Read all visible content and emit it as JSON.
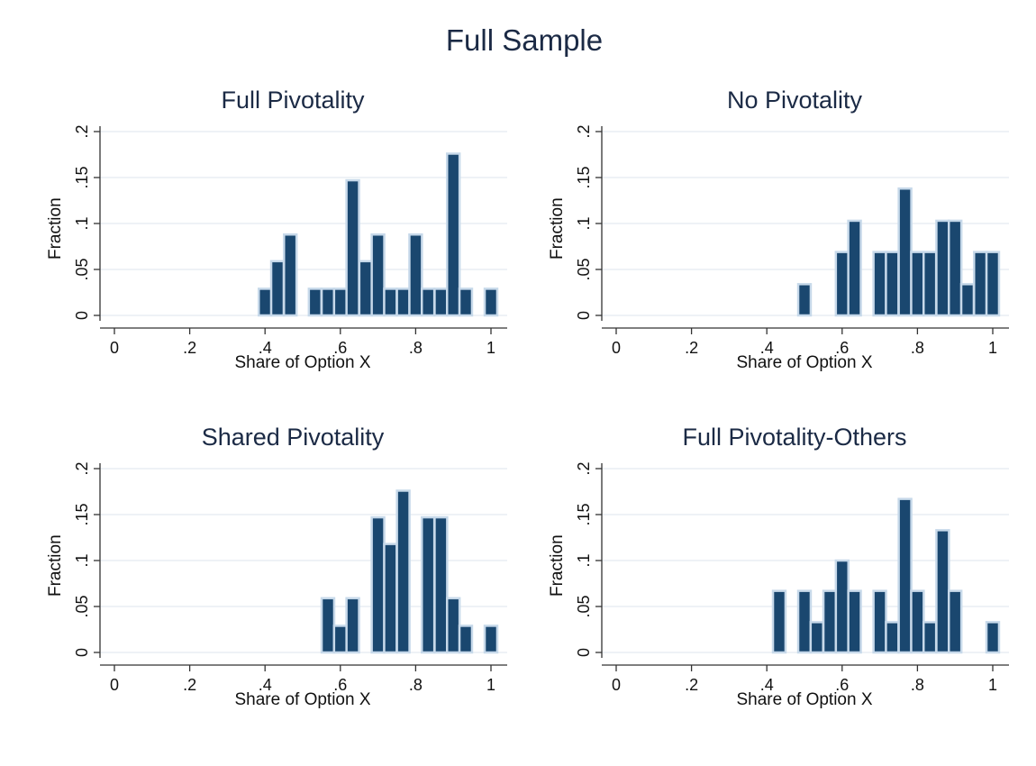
{
  "page": {
    "title": "Full Sample"
  },
  "chart_data": [
    {
      "type": "bar",
      "title": "Full Pivotality",
      "xlabel": "Share of Option X",
      "ylabel": "Fraction",
      "xlim": [
        0,
        1
      ],
      "ylim": [
        0,
        0.2
      ],
      "xticks": [
        "0",
        ".2",
        ".4",
        ".6",
        ".8",
        "1"
      ],
      "yticks": [
        "0",
        ".05",
        ".1",
        ".15",
        ".2"
      ],
      "bin_width": 0.0333,
      "x": [
        0.4,
        0.433,
        0.467,
        0.533,
        0.567,
        0.6,
        0.633,
        0.667,
        0.7,
        0.733,
        0.767,
        0.8,
        0.833,
        0.867,
        0.9,
        0.933,
        1.0
      ],
      "values": [
        0.029,
        0.059,
        0.088,
        0.029,
        0.029,
        0.029,
        0.147,
        0.059,
        0.088,
        0.029,
        0.029,
        0.088,
        0.029,
        0.029,
        0.176,
        0.029,
        0.029
      ]
    },
    {
      "type": "bar",
      "title": "No Pivotality",
      "xlabel": "Share of Option X",
      "ylabel": "Fraction",
      "xlim": [
        0,
        1
      ],
      "ylim": [
        0,
        0.2
      ],
      "xticks": [
        "0",
        ".2",
        ".4",
        ".6",
        ".8",
        "1"
      ],
      "yticks": [
        "0",
        ".05",
        ".1",
        ".15",
        ".2"
      ],
      "bin_width": 0.0333,
      "x": [
        0.5,
        0.6,
        0.633,
        0.7,
        0.733,
        0.767,
        0.8,
        0.833,
        0.867,
        0.9,
        0.933,
        0.967,
        1.0
      ],
      "values": [
        0.034,
        0.069,
        0.103,
        0.069,
        0.069,
        0.138,
        0.069,
        0.069,
        0.103,
        0.103,
        0.034,
        0.069,
        0.069
      ]
    },
    {
      "type": "bar",
      "title": "Shared Pivotality",
      "xlabel": "Share of Option X",
      "ylabel": "Fraction",
      "xlim": [
        0,
        1
      ],
      "ylim": [
        0,
        0.2
      ],
      "xticks": [
        "0",
        ".2",
        ".4",
        ".6",
        ".8",
        "1"
      ],
      "yticks": [
        "0",
        ".05",
        ".1",
        ".15",
        ".2"
      ],
      "bin_width": 0.0333,
      "x": [
        0.567,
        0.6,
        0.633,
        0.7,
        0.733,
        0.767,
        0.833,
        0.867,
        0.9,
        0.933,
        1.0
      ],
      "values": [
        0.059,
        0.029,
        0.059,
        0.147,
        0.118,
        0.176,
        0.147,
        0.147,
        0.059,
        0.029,
        0.029
      ]
    },
    {
      "type": "bar",
      "title": "Full Pivotality-Others",
      "xlabel": "Share of Option X",
      "ylabel": "Fraction",
      "xlim": [
        0,
        1
      ],
      "ylim": [
        0,
        0.2
      ],
      "xticks": [
        "0",
        ".2",
        ".4",
        ".6",
        ".8",
        "1"
      ],
      "yticks": [
        "0",
        ".05",
        ".1",
        ".15",
        ".2"
      ],
      "bin_width": 0.0333,
      "x": [
        0.433,
        0.5,
        0.533,
        0.567,
        0.6,
        0.633,
        0.7,
        0.733,
        0.767,
        0.8,
        0.833,
        0.867,
        0.9,
        1.0
      ],
      "values": [
        0.067,
        0.067,
        0.033,
        0.067,
        0.1,
        0.067,
        0.067,
        0.033,
        0.167,
        0.067,
        0.033,
        0.133,
        0.067,
        0.033
      ]
    }
  ],
  "style": {
    "bar_fill": "#1a476f",
    "bar_outline": "#c7d9ea",
    "grid_color": "#e8eef3",
    "axis_color": "#333333",
    "title_color": "#1b2a45"
  }
}
